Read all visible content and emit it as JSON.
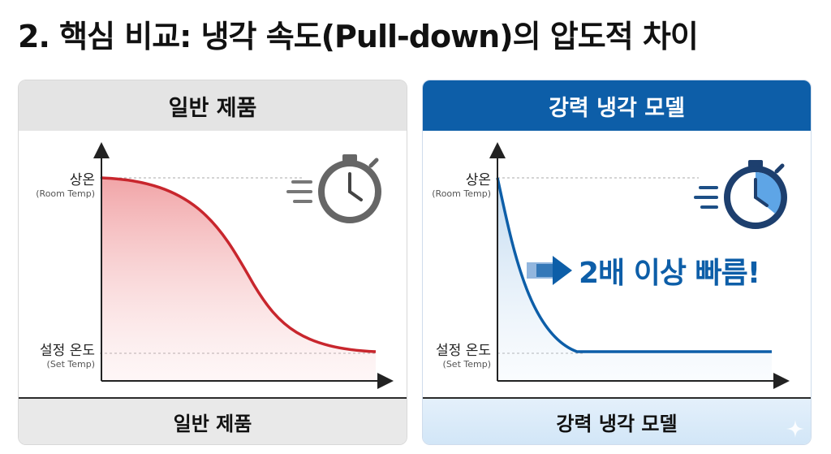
{
  "title": "2. 핵심 비교: 냉각 속도(Pull-down)의 압도적 차이",
  "panels": {
    "left": {
      "header": "일반 제품",
      "footer": "일반 제품",
      "y_top_label": "상온",
      "y_top_sub": "(Room Temp)",
      "y_bottom_label": "설정 온도",
      "y_bottom_sub": "(Set Temp)",
      "curve_color": "#c8262d",
      "icon": "stopwatch-icon"
    },
    "right": {
      "header": "강력 냉각 모델",
      "footer": "강력 냉각 모델",
      "y_top_label": "상온",
      "y_top_sub": "(Room Temp)",
      "y_bottom_label": "설정 온도",
      "y_bottom_sub": "(Set Temp)",
      "callout": "2배 이상 빠름!",
      "curve_color": "#0d5ea8",
      "icon": "fast-stopwatch-icon"
    }
  },
  "colors": {
    "header_dark": "#0d5ea8",
    "header_light": "#e4e4e4",
    "accent_red": "#c8262d",
    "accent_blue": "#0d5ea8"
  }
}
